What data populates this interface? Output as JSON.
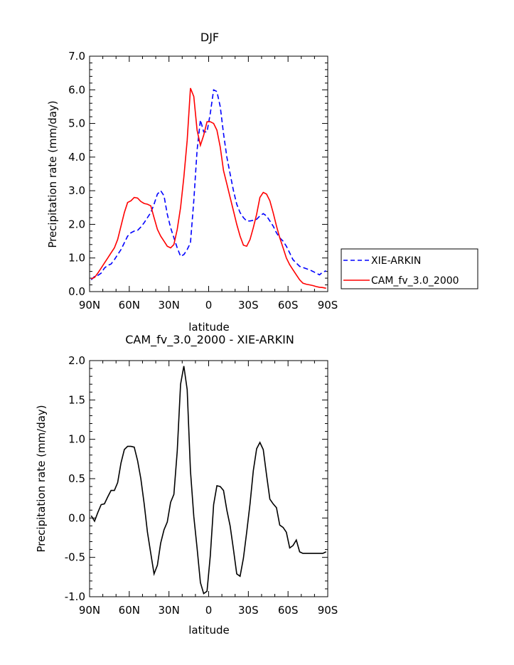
{
  "chart_data": [
    {
      "type": "line",
      "title": "DJF",
      "xlabel": "latitude",
      "ylabel": "Precipitation rate (mm/day)",
      "xlim": [
        -90,
        90
      ],
      "ylim": [
        0,
        7
      ],
      "x_tick_values": [
        -90,
        -60,
        -30,
        0,
        30,
        60,
        90
      ],
      "x_tick_labels": [
        "90N",
        "60N",
        "30N",
        "0",
        "30S",
        "60S",
        "90S"
      ],
      "y_tick_values": [
        0,
        1,
        2,
        3,
        4,
        5,
        6,
        7
      ],
      "y_tick_labels": [
        "0.0",
        "1.0",
        "2.0",
        "3.0",
        "4.0",
        "5.0",
        "6.0",
        "7.0"
      ],
      "legend_position": "right",
      "series": [
        {
          "name": "XIE-ARKIN",
          "color": "#0000ff",
          "dash": "dashed",
          "x": [
            -88.75,
            -86.25,
            -83.75,
            -81.25,
            -78.75,
            -76.25,
            -73.75,
            -71.25,
            -68.75,
            -66.25,
            -63.75,
            -61.25,
            -58.75,
            -56.25,
            -53.75,
            -51.25,
            -48.75,
            -46.25,
            -43.75,
            -41.25,
            -38.75,
            -36.25,
            -33.75,
            -31.25,
            -28.75,
            -26.25,
            -23.75,
            -21.25,
            -18.75,
            -16.25,
            -13.75,
            -11.25,
            -8.75,
            -6.25,
            -3.75,
            -1.25,
            1.25,
            3.75,
            6.25,
            8.75,
            11.25,
            13.75,
            16.25,
            18.75,
            21.25,
            23.75,
            26.25,
            28.75,
            31.25,
            33.75,
            36.25,
            38.75,
            41.25,
            43.75,
            46.25,
            48.75,
            51.25,
            53.75,
            56.25,
            58.75,
            61.25,
            63.75,
            66.25,
            68.75,
            71.25,
            73.75,
            76.25,
            78.75,
            81.25,
            83.75,
            86.25,
            88.75
          ],
          "y": [
            0.35,
            0.45,
            0.48,
            0.55,
            0.7,
            0.78,
            0.82,
            0.95,
            1.1,
            1.25,
            1.45,
            1.65,
            1.75,
            1.8,
            1.82,
            1.92,
            2.05,
            2.2,
            2.35,
            2.6,
            2.9,
            3.0,
            2.85,
            2.3,
            1.9,
            1.6,
            1.3,
            1.05,
            1.1,
            1.25,
            1.45,
            2.7,
            4.2,
            5.1,
            4.75,
            4.75,
            5.3,
            6.0,
            5.95,
            5.5,
            4.7,
            4.0,
            3.5,
            3.0,
            2.6,
            2.35,
            2.2,
            2.1,
            2.1,
            2.12,
            2.15,
            2.25,
            2.32,
            2.25,
            2.1,
            1.95,
            1.75,
            1.6,
            1.5,
            1.35,
            1.15,
            0.95,
            0.85,
            0.75,
            0.72,
            0.68,
            0.65,
            0.6,
            0.55,
            0.5,
            0.58,
            0.62
          ]
        },
        {
          "name": "CAM_fv_3.0_2000",
          "color": "#ff0000",
          "dash": "solid",
          "x": [
            -88.75,
            -86.25,
            -83.75,
            -81.25,
            -78.75,
            -76.25,
            -73.75,
            -71.25,
            -68.75,
            -66.25,
            -63.75,
            -61.25,
            -58.75,
            -56.25,
            -53.75,
            -51.25,
            -48.75,
            -46.25,
            -43.75,
            -41.25,
            -38.75,
            -36.25,
            -33.75,
            -31.25,
            -28.75,
            -26.25,
            -23.75,
            -21.25,
            -18.75,
            -16.25,
            -13.75,
            -11.25,
            -8.75,
            -6.25,
            -3.75,
            -1.25,
            1.25,
            3.75,
            6.25,
            8.75,
            11.25,
            13.75,
            16.25,
            18.75,
            21.25,
            23.75,
            26.25,
            28.75,
            31.25,
            33.75,
            36.25,
            38.75,
            41.25,
            43.75,
            46.25,
            48.75,
            51.25,
            53.75,
            56.25,
            58.75,
            61.25,
            63.75,
            66.25,
            68.75,
            71.25,
            73.75,
            76.25,
            78.75,
            81.25,
            83.75,
            86.25,
            88.75
          ],
          "y": [
            0.38,
            0.42,
            0.55,
            0.7,
            0.85,
            1.0,
            1.15,
            1.3,
            1.55,
            1.95,
            2.35,
            2.65,
            2.7,
            2.8,
            2.78,
            2.68,
            2.62,
            2.6,
            2.55,
            2.2,
            1.85,
            1.65,
            1.5,
            1.35,
            1.3,
            1.4,
            1.85,
            2.5,
            3.4,
            4.5,
            6.05,
            5.8,
            4.8,
            4.35,
            4.65,
            5.05,
            5.05,
            5.0,
            4.8,
            4.3,
            3.6,
            3.2,
            2.8,
            2.4,
            2.0,
            1.65,
            1.38,
            1.35,
            1.55,
            1.9,
            2.3,
            2.8,
            2.95,
            2.9,
            2.7,
            2.35,
            1.95,
            1.6,
            1.3,
            1.0,
            0.8,
            0.65,
            0.5,
            0.35,
            0.25,
            0.22,
            0.2,
            0.18,
            0.15,
            0.13,
            0.12,
            0.1
          ]
        }
      ]
    },
    {
      "type": "line",
      "title": "CAM_fv_3.0_2000 - XIE-ARKIN",
      "xlabel": "latitude",
      "ylabel": "Precipitation rate (mm/day)",
      "xlim": [
        -90,
        90
      ],
      "ylim": [
        -1,
        2
      ],
      "x_tick_values": [
        -90,
        -60,
        -30,
        0,
        30,
        60,
        90
      ],
      "x_tick_labels": [
        "90N",
        "60N",
        "30N",
        "0",
        "30S",
        "60S",
        "90S"
      ],
      "y_tick_values": [
        -1,
        -0.5,
        0,
        0.5,
        1,
        1.5,
        2
      ],
      "y_tick_labels": [
        "-1.0",
        "-0.5",
        "0.0",
        "0.5",
        "1.0",
        "1.5",
        "2.0"
      ],
      "series": [
        {
          "color": "#000000",
          "dash": "solid",
          "x": [
            -88.75,
            -86.25,
            -83.75,
            -81.25,
            -78.75,
            -76.25,
            -73.75,
            -71.25,
            -68.75,
            -66.25,
            -63.75,
            -61.25,
            -58.75,
            -56.25,
            -53.75,
            -51.25,
            -48.75,
            -46.25,
            -43.75,
            -41.25,
            -38.75,
            -36.25,
            -33.75,
            -31.25,
            -28.75,
            -26.25,
            -23.75,
            -21.25,
            -18.75,
            -16.25,
            -13.75,
            -11.25,
            -8.75,
            -6.25,
            -3.75,
            -1.25,
            1.25,
            3.75,
            6.25,
            8.75,
            11.25,
            13.75,
            16.25,
            18.75,
            21.25,
            23.75,
            26.25,
            28.75,
            31.25,
            33.75,
            36.25,
            38.75,
            41.25,
            43.75,
            46.25,
            48.75,
            51.25,
            53.75,
            56.25,
            58.75,
            61.25,
            63.75,
            66.25,
            68.75,
            71.25,
            73.75,
            76.25,
            78.75,
            81.25,
            83.75,
            86.25,
            88.75
          ],
          "y": [
            0.03,
            -0.04,
            0.07,
            0.17,
            0.18,
            0.27,
            0.35,
            0.35,
            0.45,
            0.7,
            0.87,
            0.91,
            0.91,
            0.9,
            0.73,
            0.5,
            0.18,
            -0.18,
            -0.45,
            -0.71,
            -0.6,
            -0.32,
            -0.15,
            -0.05,
            0.2,
            0.3,
            0.85,
            1.7,
            1.93,
            1.63,
            0.6,
            0.02,
            -0.38,
            -0.82,
            -0.96,
            -0.93,
            -0.48,
            0.17,
            0.41,
            0.4,
            0.35,
            0.1,
            -0.1,
            -0.4,
            -0.71,
            -0.74,
            -0.51,
            -0.18,
            0.18,
            0.6,
            0.88,
            0.96,
            0.87,
            0.55,
            0.24,
            0.18,
            0.13,
            -0.09,
            -0.12,
            -0.18,
            -0.38,
            -0.35,
            -0.28,
            -0.43,
            -0.45,
            -0.45,
            -0.45,
            -0.45,
            -0.45,
            -0.45,
            -0.45,
            -0.43
          ]
        }
      ]
    }
  ]
}
